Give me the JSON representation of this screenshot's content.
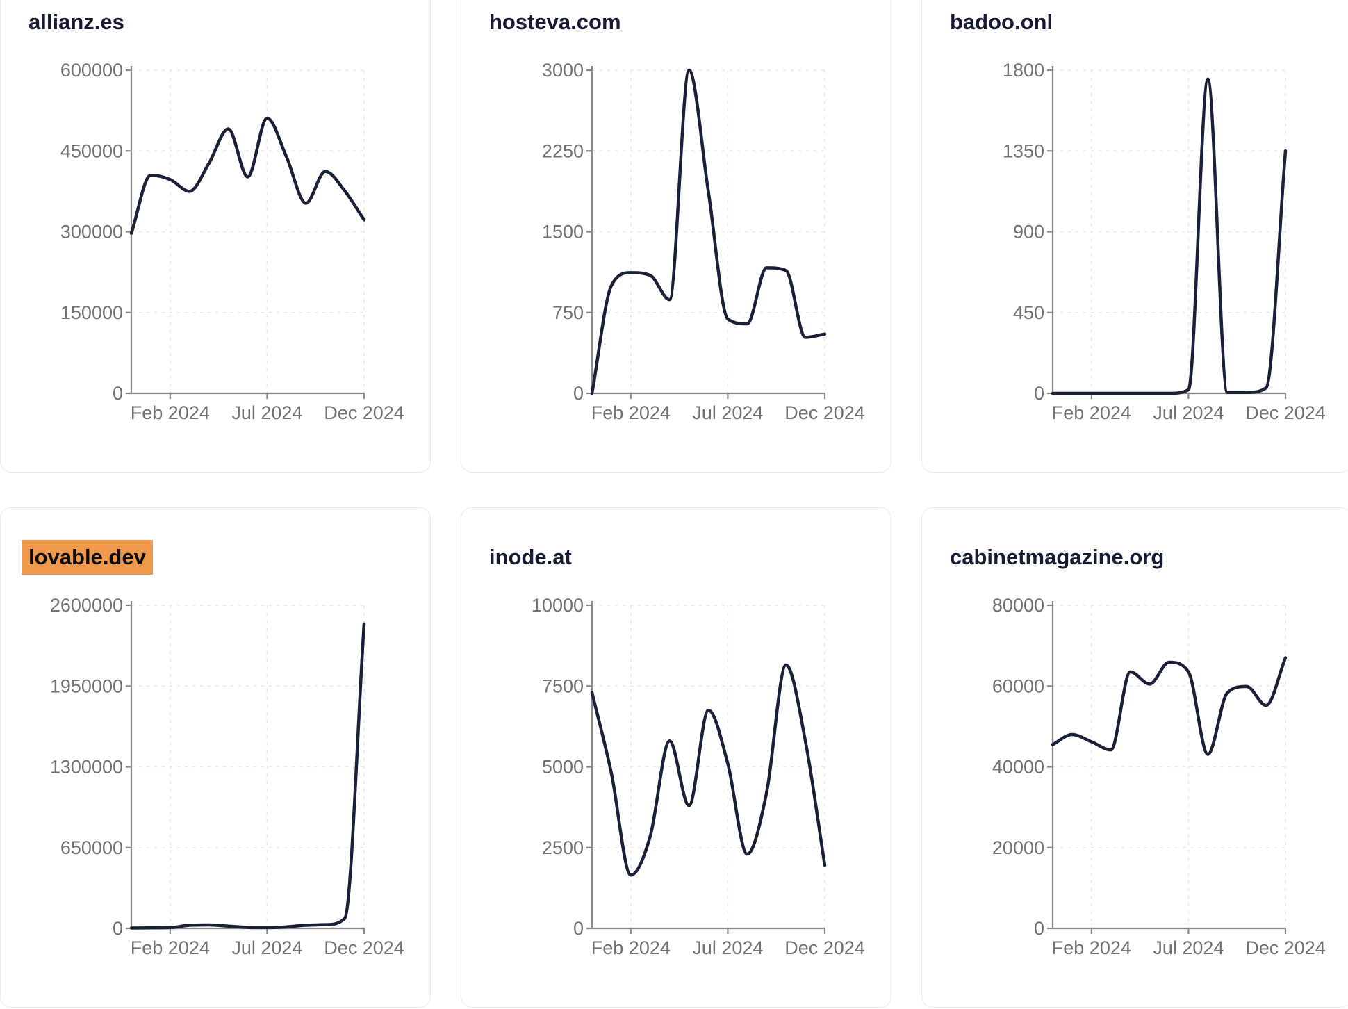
{
  "styles": {
    "page_bg": "#ffffff",
    "card_bg": "#ffffff",
    "card_border": "#e8eaec",
    "title_color": "#141c33",
    "line_color": "#1a2037",
    "axis_color": "#8a8a8a",
    "tick_label_color": "#6e7276",
    "grid_color": "#e7e7e9",
    "highlight_bg": "#f0984b"
  },
  "chart_data": [
    {
      "type": "line",
      "title": "allianz.es",
      "title_highlight": false,
      "x": [
        "Dec 2023",
        "Jan 2024",
        "Feb 2024",
        "Mar 2024",
        "Apr 2024",
        "May 2024",
        "Jun 2024",
        "Jul 2024",
        "Aug 2024",
        "Sep 2024",
        "Oct 2024",
        "Nov 2024",
        "Dec 2024"
      ],
      "values": [
        297000,
        405000,
        397000,
        375000,
        427000,
        491000,
        402000,
        511000,
        439000,
        353000,
        412000,
        376000,
        322000
      ],
      "ylim": [
        0,
        600000
      ],
      "y_ticks": [
        0,
        150000,
        300000,
        450000,
        600000
      ],
      "x_tick_labels": [
        "Feb 2024",
        "Jul 2024",
        "Dec 2024"
      ],
      "x_tick_positions": [
        2,
        7,
        12
      ],
      "grid": true
    },
    {
      "type": "line",
      "title": "hosteva.com",
      "title_highlight": false,
      "x": [
        "Dec 2023",
        "Jan 2024",
        "Feb 2024",
        "Mar 2024",
        "Apr 2024",
        "May 2024",
        "Jun 2024",
        "Jul 2024",
        "Aug 2024",
        "Sep 2024",
        "Oct 2024",
        "Nov 2024",
        "Dec 2024"
      ],
      "values": [
        0,
        1000,
        1120,
        1095,
        870,
        3000,
        1870,
        690,
        645,
        1165,
        1140,
        520,
        550
      ],
      "ylim": [
        0,
        3000
      ],
      "y_ticks": [
        0,
        750,
        1500,
        2250,
        3000
      ],
      "x_tick_labels": [
        "Feb 2024",
        "Jul 2024",
        "Dec 2024"
      ],
      "x_tick_positions": [
        2,
        7,
        12
      ],
      "grid": true
    },
    {
      "type": "line",
      "title": "badoo.onl",
      "title_highlight": false,
      "x": [
        "Dec 2023",
        "Jan 2024",
        "Feb 2024",
        "Mar 2024",
        "Apr 2024",
        "May 2024",
        "Jun 2024",
        "Jul 2024",
        "Aug 2024",
        "Sep 2024",
        "Oct 2024",
        "Nov 2024",
        "Dec 2024"
      ],
      "values": [
        0,
        0,
        0,
        0,
        0,
        0,
        0,
        20,
        1750,
        5,
        5,
        30,
        1350
      ],
      "ylim": [
        0,
        1800
      ],
      "y_ticks": [
        0,
        450,
        900,
        1350,
        1800
      ],
      "x_tick_labels": [
        "Feb 2024",
        "Jul 2024",
        "Dec 2024"
      ],
      "x_tick_positions": [
        2,
        7,
        12
      ],
      "grid": true
    },
    {
      "type": "line",
      "title": "lovable.dev",
      "title_highlight": true,
      "x": [
        "Dec 2023",
        "Jan 2024",
        "Feb 2024",
        "Mar 2024",
        "Apr 2024",
        "May 2024",
        "Jun 2024",
        "Jul 2024",
        "Aug 2024",
        "Sep 2024",
        "Oct 2024",
        "Nov 2024",
        "Dec 2024"
      ],
      "values": [
        3000,
        4000,
        6000,
        25000,
        28000,
        18000,
        8000,
        6000,
        12000,
        25000,
        30000,
        80000,
        2450000
      ],
      "ylim": [
        0,
        2600000
      ],
      "y_ticks": [
        0,
        650000,
        1300000,
        1950000,
        2600000
      ],
      "x_tick_labels": [
        "Feb 2024",
        "Jul 2024",
        "Dec 2024"
      ],
      "x_tick_positions": [
        2,
        7,
        12
      ],
      "grid": true
    },
    {
      "type": "line",
      "title": "inode.at",
      "title_highlight": false,
      "x": [
        "Dec 2023",
        "Jan 2024",
        "Feb 2024",
        "Mar 2024",
        "Apr 2024",
        "May 2024",
        "Jun 2024",
        "Jul 2024",
        "Aug 2024",
        "Sep 2024",
        "Oct 2024",
        "Nov 2024",
        "Dec 2024"
      ],
      "values": [
        7300,
        4800,
        1650,
        2850,
        5800,
        3800,
        6750,
        5100,
        2300,
        4200,
        8150,
        5800,
        1950
      ],
      "ylim": [
        0,
        10000
      ],
      "y_ticks": [
        0,
        2500,
        5000,
        7500,
        10000
      ],
      "x_tick_labels": [
        "Feb 2024",
        "Jul 2024",
        "Dec 2024"
      ],
      "x_tick_positions": [
        2,
        7,
        12
      ],
      "grid": true
    },
    {
      "type": "line",
      "title": "cabinetmagazine.org",
      "title_highlight": false,
      "x": [
        "Dec 2023",
        "Jan 2024",
        "Feb 2024",
        "Mar 2024",
        "Apr 2024",
        "May 2024",
        "Jun 2024",
        "Jul 2024",
        "Aug 2024",
        "Sep 2024",
        "Oct 2024",
        "Nov 2024",
        "Dec 2024"
      ],
      "values": [
        45500,
        48000,
        46200,
        44200,
        63500,
        60500,
        65900,
        63500,
        43100,
        58300,
        59900,
        55200,
        67000
      ],
      "ylim": [
        0,
        80000
      ],
      "y_ticks": [
        0,
        20000,
        40000,
        60000,
        80000
      ],
      "x_tick_labels": [
        "Feb 2024",
        "Jul 2024",
        "Dec 2024"
      ],
      "x_tick_positions": [
        2,
        7,
        12
      ],
      "grid": true
    }
  ]
}
